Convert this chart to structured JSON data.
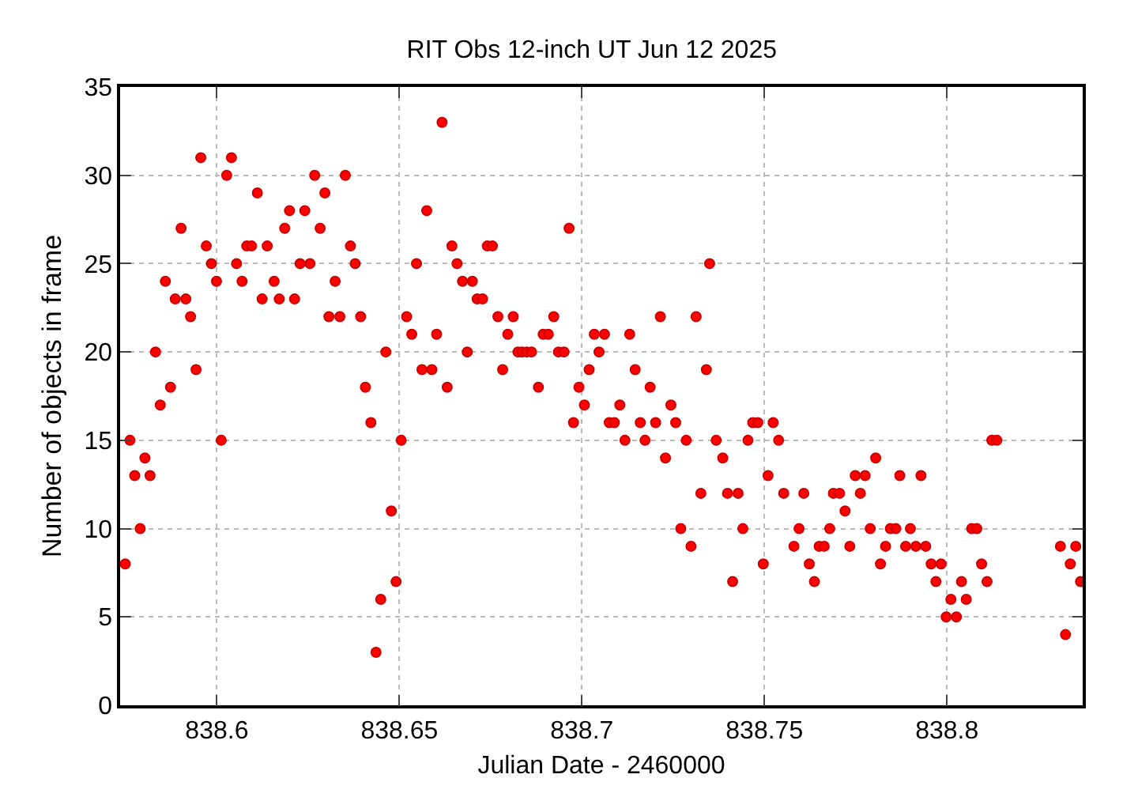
{
  "chart_data": {
    "type": "scatter",
    "title": "RIT Obs 12-inch UT Jun 12 2025",
    "xlabel": "Julian Date - 2460000",
    "ylabel": "Number of objects in frame",
    "x": [
      838.5749,
      838.5762,
      838.5775,
      838.579,
      838.5803,
      838.5817,
      838.5832,
      838.5845,
      838.5859,
      838.5873,
      838.5886,
      838.5902,
      838.5915,
      838.5928,
      838.5943,
      838.5956,
      838.5971,
      838.5985,
      838.5999,
      838.6012,
      838.6027,
      838.604,
      838.6054,
      838.6069,
      838.6082,
      838.6095,
      838.6111,
      838.6124,
      838.6138,
      838.6157,
      838.6171,
      838.6186,
      838.6199,
      838.6213,
      838.6228,
      838.6241,
      838.6255,
      838.6268,
      838.6283,
      838.6296,
      838.6307,
      838.6324,
      838.6337,
      838.6352,
      838.6366,
      838.6379,
      838.6394,
      838.6407,
      838.6422,
      838.6436,
      838.6449,
      838.6463,
      838.6478,
      838.6491,
      838.6505,
      838.652,
      838.6534,
      838.6547,
      838.6562,
      838.6575,
      838.6589,
      838.6602,
      838.6617,
      838.6631,
      838.6644,
      838.6658,
      838.6673,
      838.6686,
      838.67,
      838.6713,
      838.6728,
      838.6741,
      838.6755,
      838.677,
      838.6783,
      838.6797,
      838.6812,
      838.6825,
      838.6836,
      838.6849,
      838.6862,
      838.6881,
      838.6894,
      838.6908,
      838.6923,
      838.6936,
      838.6951,
      838.6965,
      838.6977,
      838.6992,
      838.7007,
      838.702,
      838.7034,
      838.7047,
      838.7062,
      838.7075,
      838.7089,
      838.7104,
      838.7118,
      838.7131,
      838.7146,
      838.716,
      838.7173,
      838.7187,
      838.7202,
      838.7215,
      838.7229,
      838.7244,
      838.7257,
      838.7271,
      838.7286,
      838.7299,
      838.7313,
      838.7326,
      838.7341,
      838.735,
      838.7368,
      838.7386,
      838.7399,
      838.7413,
      838.7428,
      838.7441,
      838.7455,
      838.7468,
      838.7482,
      838.7497,
      838.751,
      838.7524,
      838.7539,
      838.7553,
      838.7581,
      838.7595,
      838.7608,
      838.7623,
      838.7637,
      838.765,
      838.7664,
      838.7679,
      838.7689,
      838.7706,
      838.7721,
      838.7734,
      838.7749,
      838.7763,
      838.7776,
      838.779,
      838.7805,
      838.7818,
      838.7832,
      838.7845,
      838.786,
      838.7871,
      838.7887,
      838.79,
      838.7915,
      838.7929,
      838.7942,
      838.7957,
      838.797,
      838.7984,
      838.7998,
      838.8011,
      838.8026,
      838.804,
      838.8053,
      838.8068,
      838.8082,
      838.8095,
      838.811,
      838.8123,
      838.8137,
      838.8311,
      838.8325,
      838.8338,
      838.8353,
      838.8366
    ],
    "values": [
      8,
      15,
      13,
      10,
      14,
      13,
      20,
      17,
      24,
      18,
      23,
      27,
      23,
      22,
      19,
      31,
      26,
      25,
      24,
      15,
      30,
      31,
      25,
      24,
      26,
      26,
      29,
      23,
      26,
      24,
      23,
      27,
      28,
      23,
      25,
      28,
      25,
      30,
      27,
      29,
      22,
      24,
      22,
      30,
      26,
      25,
      22,
      18,
      16,
      3,
      6,
      20,
      11,
      7,
      15,
      22,
      21,
      25,
      19,
      28,
      19,
      21,
      33,
      18,
      26,
      25,
      24,
      20,
      24,
      23,
      23,
      26,
      26,
      22,
      19,
      21,
      22,
      20,
      20,
      20,
      20,
      18,
      21,
      21,
      22,
      20,
      20,
      27,
      16,
      18,
      17,
      19,
      21,
      20,
      21,
      16,
      16,
      17,
      15,
      21,
      19,
      16,
      15,
      18,
      16,
      22,
      14,
      17,
      16,
      10,
      15,
      9,
      22,
      12,
      19,
      25,
      15,
      14,
      12,
      7,
      12,
      10,
      15,
      16,
      16,
      8,
      13,
      16,
      15,
      12,
      9,
      10,
      12,
      8,
      7,
      9,
      9,
      10,
      12,
      12,
      11,
      9,
      13,
      12,
      13,
      10,
      14,
      8,
      9,
      10,
      10,
      13,
      9,
      10,
      9,
      13,
      9,
      8,
      7,
      8,
      5,
      6,
      5,
      7,
      6,
      10,
      10,
      8,
      7,
      15,
      15,
      9,
      4,
      8,
      9,
      7
    ],
    "color": "#ff0000",
    "marker": "circle",
    "grid": true,
    "xlim": [
      838.5735,
      838.8372
    ],
    "xticks": [
      838.6,
      838.65,
      838.7,
      838.75,
      838.8
    ],
    "ylim": [
      0,
      35
    ],
    "yticks": [
      0,
      5,
      10,
      15,
      20,
      25,
      30,
      35
    ]
  }
}
